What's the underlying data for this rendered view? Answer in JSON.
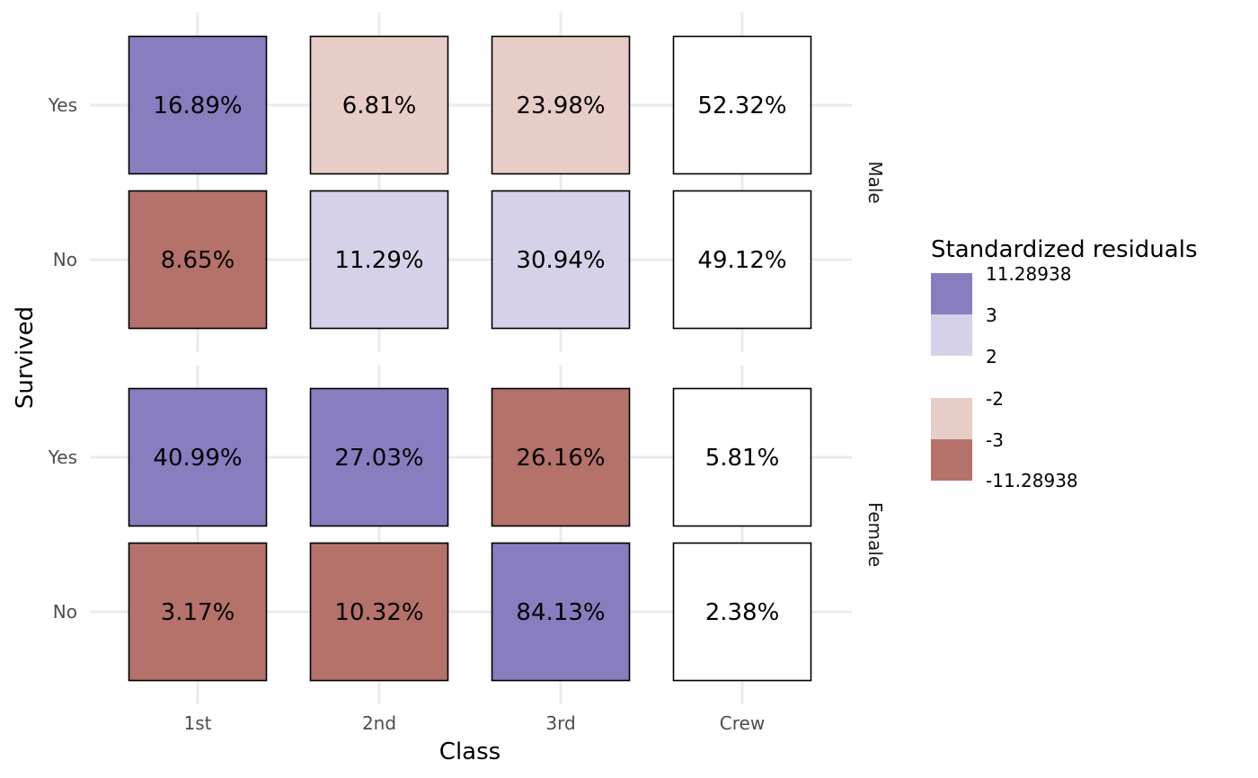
{
  "chart_data": {
    "type": "heatmap",
    "xlabel": "Class",
    "ylabel": "Survived",
    "x_categories": [
      "1st",
      "2nd",
      "3rd",
      "Crew"
    ],
    "y_categories": [
      "Yes",
      "No"
    ],
    "facets": [
      {
        "name": "Male",
        "rows": [
          {
            "label": "Yes",
            "cells": [
              {
                "label": "16.89%",
                "value": 16.89,
                "bin": "high"
              },
              {
                "label": "6.81%",
                "value": 6.81,
                "bin": "low"
              },
              {
                "label": "23.98%",
                "value": 23.98,
                "bin": "low"
              },
              {
                "label": "52.32%",
                "value": 52.32,
                "bin": "none"
              }
            ]
          },
          {
            "label": "No",
            "cells": [
              {
                "label": "8.65%",
                "value": 8.65,
                "bin": "very_low"
              },
              {
                "label": "11.29%",
                "value": 11.29,
                "bin": "mid_high"
              },
              {
                "label": "30.94%",
                "value": 30.94,
                "bin": "mid_high"
              },
              {
                "label": "49.12%",
                "value": 49.12,
                "bin": "none"
              }
            ]
          }
        ]
      },
      {
        "name": "Female",
        "rows": [
          {
            "label": "Yes",
            "cells": [
              {
                "label": "40.99%",
                "value": 40.99,
                "bin": "high"
              },
              {
                "label": "27.03%",
                "value": 27.03,
                "bin": "high"
              },
              {
                "label": "26.16%",
                "value": 26.16,
                "bin": "very_low"
              },
              {
                "label": "5.81%",
                "value": 5.81,
                "bin": "none"
              }
            ]
          },
          {
            "label": "No",
            "cells": [
              {
                "label": "3.17%",
                "value": 3.17,
                "bin": "very_low"
              },
              {
                "label": "10.32%",
                "value": 10.32,
                "bin": "very_low"
              },
              {
                "label": "84.13%",
                "value": 84.13,
                "bin": "high"
              },
              {
                "label": "2.38%",
                "value": 2.38,
                "bin": "none"
              }
            ]
          }
        ]
      }
    ],
    "legend": {
      "title": "Standardized residuals",
      "breaks": [
        "11.28938",
        "3",
        "2",
        "-2",
        "-3",
        "-11.28938"
      ],
      "bins": [
        {
          "name": "high",
          "range": [
            3,
            11.28938
          ],
          "color": "#877DBF"
        },
        {
          "name": "mid_high",
          "range": [
            2,
            3
          ],
          "color": "#D6D1E8"
        },
        {
          "name": "low",
          "range": [
            -3,
            -2
          ],
          "color": "#E8CCC8"
        },
        {
          "name": "very_low",
          "range": [
            -11.28938,
            -3
          ],
          "color": "#B5726A"
        }
      ],
      "none_color": "#FFFFFF",
      "placement": "right"
    },
    "grid": true
  }
}
